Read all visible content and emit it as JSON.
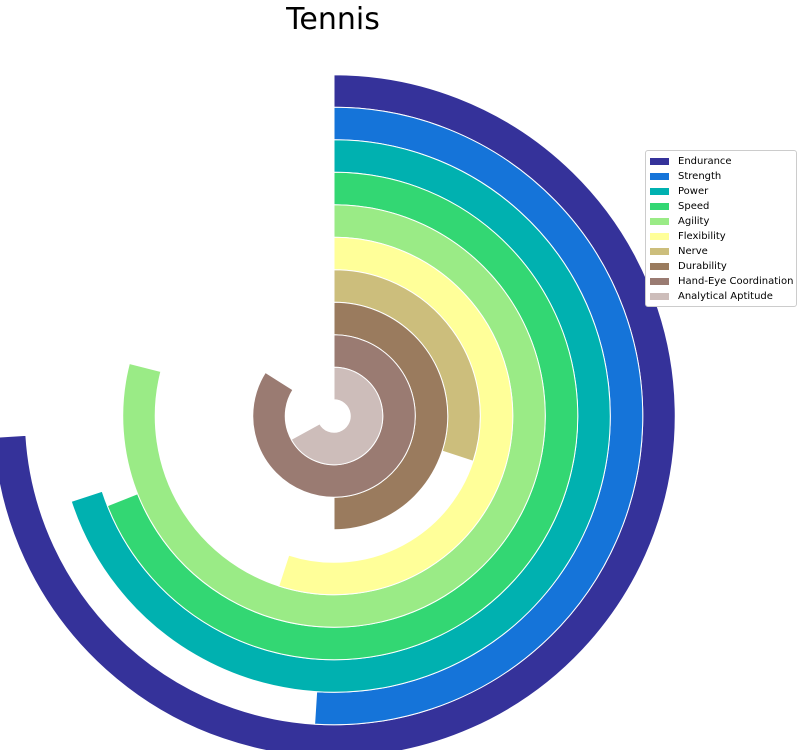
{
  "chart_data": {
    "type": "radial-bar",
    "title": "Tennis",
    "angle_range": [
      0,
      100
    ],
    "direction": "clockwise from top",
    "legend_position": "right",
    "series": [
      {
        "name": "Endurance",
        "value": 74,
        "color": "#35329a"
      },
      {
        "name": "Strength",
        "value": 51,
        "color": "#1574d9"
      },
      {
        "name": "Power",
        "value": 70,
        "color": "#00b1b0"
      },
      {
        "name": "Speed",
        "value": 69,
        "color": "#33d773"
      },
      {
        "name": "Agility",
        "value": 79,
        "color": "#9aeb86"
      },
      {
        "name": "Flexibility",
        "value": 55,
        "color": "#ffff99"
      },
      {
        "name": "Nerve",
        "value": 30,
        "color": "#ccbe7c"
      },
      {
        "name": "Durability",
        "value": 50,
        "color": "#9a7b5e"
      },
      {
        "name": "Hand-Eye Coordination",
        "value": 84,
        "color": "#9a7b72"
      },
      {
        "name": "Analytical Aptitude",
        "value": 67,
        "color": "#cdbdba"
      }
    ]
  }
}
